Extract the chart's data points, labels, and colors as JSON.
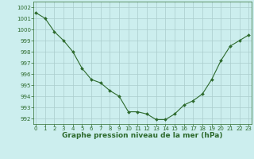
{
  "x": [
    0,
    1,
    2,
    3,
    4,
    5,
    6,
    7,
    8,
    9,
    10,
    11,
    12,
    13,
    14,
    15,
    16,
    17,
    18,
    19,
    20,
    21,
    22,
    23
  ],
  "y": [
    1001.5,
    1001.0,
    999.8,
    999.0,
    998.0,
    996.5,
    995.5,
    995.2,
    994.5,
    994.0,
    992.6,
    992.6,
    992.4,
    991.9,
    991.9,
    992.4,
    993.2,
    993.6,
    994.2,
    995.5,
    997.2,
    998.5,
    999.0,
    999.5
  ],
  "ylim": [
    991.5,
    1002.5
  ],
  "yticks": [
    992,
    993,
    994,
    995,
    996,
    997,
    998,
    999,
    1000,
    1001,
    1002
  ],
  "xticks": [
    0,
    1,
    2,
    3,
    4,
    5,
    6,
    7,
    8,
    9,
    10,
    11,
    12,
    13,
    14,
    15,
    16,
    17,
    18,
    19,
    20,
    21,
    22,
    23
  ],
  "xlabel": "Graphe pression niveau de la mer (hPa)",
  "line_color": "#2d6a2d",
  "marker": "D",
  "marker_size": 2.0,
  "bg_color": "#cceeee",
  "grid_color": "#aacccc",
  "tick_fontsize": 5.0,
  "xlabel_fontsize": 6.5
}
